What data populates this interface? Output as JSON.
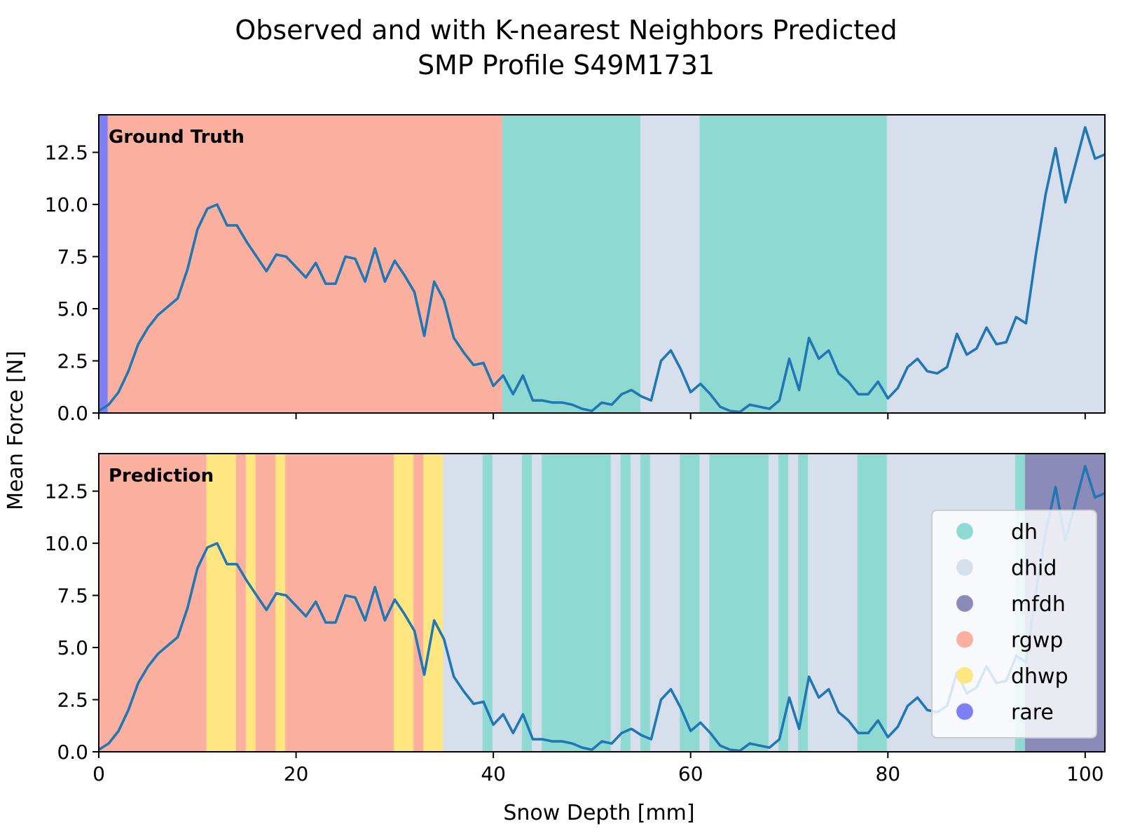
{
  "chart_data": {
    "type": "line",
    "title": "Observed and with K-nearest Neighbors Predicted",
    "subtitle": "SMP Profile S49M1731",
    "xlabel": "Snow Depth [mm]",
    "ylabel": "Mean Force [N]",
    "xlim": [
      0,
      102
    ],
    "ylim": [
      0,
      14.3
    ],
    "x_ticks": [
      0,
      20,
      40,
      60,
      80,
      100
    ],
    "y_ticks": [
      0.0,
      2.5,
      5.0,
      7.5,
      10.0,
      12.5
    ],
    "x_tick_labels": [
      "0",
      "20",
      "40",
      "60",
      "80",
      "100"
    ],
    "y_tick_labels": [
      "0.0",
      "2.5",
      "5.0",
      "7.5",
      "10.0",
      "12.5"
    ],
    "grid": false,
    "line_color": "#1f77b4",
    "series": [
      {
        "x": [
          0,
          1,
          2,
          3,
          4,
          5,
          6,
          7,
          8,
          9,
          10,
          11,
          12,
          13,
          14,
          15,
          16,
          17,
          18,
          19,
          20,
          21,
          22,
          23,
          24,
          25,
          26,
          27,
          28,
          29,
          30,
          31,
          32,
          33,
          34,
          35,
          36,
          37,
          38,
          39,
          40,
          41,
          42,
          43,
          44,
          45,
          46,
          47,
          48,
          49,
          50,
          51,
          52,
          53,
          54,
          55,
          56,
          57,
          58,
          59,
          60,
          61,
          62,
          63,
          64,
          65,
          66,
          67,
          68,
          69,
          70,
          71,
          72,
          73,
          74,
          75,
          76,
          77,
          78,
          79,
          80,
          81,
          82,
          83,
          84,
          85,
          86,
          87,
          88,
          89,
          90,
          91,
          92,
          93,
          94,
          95,
          96,
          97,
          98,
          99,
          100,
          101,
          102
        ],
        "values": [
          0.1,
          0.4,
          1.0,
          2.0,
          3.3,
          4.1,
          4.7,
          5.1,
          5.5,
          6.9,
          8.8,
          9.8,
          10.0,
          9.0,
          9.0,
          8.2,
          7.5,
          6.8,
          7.6,
          7.5,
          7.0,
          6.5,
          7.2,
          6.2,
          6.2,
          7.5,
          7.4,
          6.3,
          7.9,
          6.3,
          7.3,
          6.6,
          5.8,
          3.7,
          6.3,
          5.4,
          3.6,
          2.9,
          2.3,
          2.4,
          1.3,
          1.8,
          0.9,
          1.8,
          0.6,
          0.6,
          0.5,
          0.5,
          0.4,
          0.2,
          0.1,
          0.5,
          0.4,
          0.9,
          1.1,
          0.8,
          0.6,
          2.5,
          3.0,
          2.1,
          1.0,
          1.4,
          0.9,
          0.3,
          0.1,
          0.05,
          0.4,
          0.3,
          0.2,
          0.6,
          2.6,
          1.1,
          3.6,
          2.6,
          3.0,
          1.9,
          1.5,
          0.9,
          0.9,
          1.5,
          0.7,
          1.2,
          2.2,
          2.6,
          2.0,
          1.9,
          2.2,
          3.8,
          2.8,
          3.1,
          4.1,
          3.3,
          3.4,
          4.6,
          4.3,
          7.6,
          10.5,
          12.7,
          10.1,
          11.9,
          13.7,
          12.2,
          12.4
        ]
      }
    ],
    "panels": [
      {
        "label": "Ground Truth",
        "segments": [
          {
            "x0": 0,
            "x1": 1,
            "cls": "rare"
          },
          {
            "x0": 1,
            "x1": 41,
            "cls": "rgwp"
          },
          {
            "x0": 41,
            "x1": 55,
            "cls": "dh"
          },
          {
            "x0": 55,
            "x1": 61,
            "cls": "dhid"
          },
          {
            "x0": 61,
            "x1": 80,
            "cls": "dh"
          },
          {
            "x0": 80,
            "x1": 102,
            "cls": "dhid"
          }
        ]
      },
      {
        "label": "Prediction",
        "segments": [
          {
            "x0": 0,
            "x1": 11,
            "cls": "rgwp"
          },
          {
            "x0": 11,
            "x1": 14,
            "cls": "dhwp"
          },
          {
            "x0": 14,
            "x1": 15,
            "cls": "rgwp"
          },
          {
            "x0": 15,
            "x1": 16,
            "cls": "dhwp"
          },
          {
            "x0": 16,
            "x1": 18,
            "cls": "rgwp"
          },
          {
            "x0": 18,
            "x1": 19,
            "cls": "dhwp"
          },
          {
            "x0": 19,
            "x1": 30,
            "cls": "rgwp"
          },
          {
            "x0": 30,
            "x1": 32,
            "cls": "dhwp"
          },
          {
            "x0": 32,
            "x1": 33,
            "cls": "rgwp"
          },
          {
            "x0": 33,
            "x1": 35,
            "cls": "dhwp"
          },
          {
            "x0": 35,
            "x1": 39,
            "cls": "dhid"
          },
          {
            "x0": 39,
            "x1": 40,
            "cls": "dh"
          },
          {
            "x0": 40,
            "x1": 43,
            "cls": "dhid"
          },
          {
            "x0": 43,
            "x1": 44,
            "cls": "dh"
          },
          {
            "x0": 44,
            "x1": 45,
            "cls": "dhid"
          },
          {
            "x0": 45,
            "x1": 52,
            "cls": "dh"
          },
          {
            "x0": 52,
            "x1": 53,
            "cls": "dhid"
          },
          {
            "x0": 53,
            "x1": 54,
            "cls": "dh"
          },
          {
            "x0": 54,
            "x1": 55,
            "cls": "dhid"
          },
          {
            "x0": 55,
            "x1": 56,
            "cls": "dh"
          },
          {
            "x0": 56,
            "x1": 59,
            "cls": "dhid"
          },
          {
            "x0": 59,
            "x1": 61,
            "cls": "dh"
          },
          {
            "x0": 61,
            "x1": 62,
            "cls": "dhid"
          },
          {
            "x0": 62,
            "x1": 68,
            "cls": "dh"
          },
          {
            "x0": 68,
            "x1": 69,
            "cls": "dhid"
          },
          {
            "x0": 69,
            "x1": 70,
            "cls": "dh"
          },
          {
            "x0": 70,
            "x1": 71,
            "cls": "dhid"
          },
          {
            "x0": 71,
            "x1": 72,
            "cls": "dh"
          },
          {
            "x0": 72,
            "x1": 77,
            "cls": "dhid"
          },
          {
            "x0": 77,
            "x1": 80,
            "cls": "dh"
          },
          {
            "x0": 80,
            "x1": 93,
            "cls": "dhid"
          },
          {
            "x0": 93,
            "x1": 94,
            "cls": "dh"
          },
          {
            "x0": 94,
            "x1": 102,
            "cls": "mfdh"
          }
        ]
      }
    ],
    "legend": {
      "placement": "lower-right of bottom panel",
      "entries": [
        {
          "name": "dh",
          "color": "#8fd9d3"
        },
        {
          "name": "dhid",
          "color": "#d6dfeb"
        },
        {
          "name": "mfdh",
          "color": "#8b8ab8"
        },
        {
          "name": "rgwp",
          "color": "#fbaf9f"
        },
        {
          "name": "dhwp",
          "color": "#ffe680"
        },
        {
          "name": "rare",
          "color": "#7f7ff5"
        }
      ]
    }
  }
}
